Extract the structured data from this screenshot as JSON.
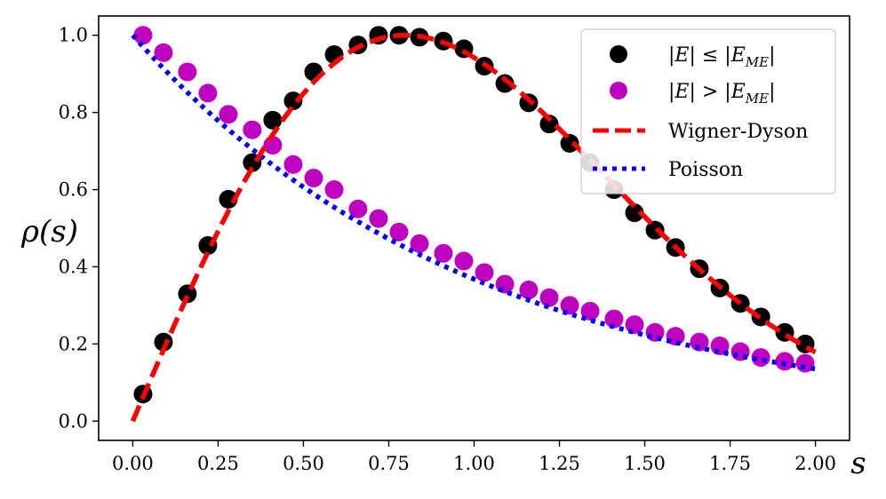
{
  "chart_data": {
    "type": "scatter+line",
    "title": "",
    "xlabel": "s",
    "ylabel": "ρ(s)",
    "xlim": [
      -0.1,
      2.1
    ],
    "ylim": [
      -0.05,
      1.05
    ],
    "xticks": [
      "0.00",
      "0.25",
      "0.50",
      "0.75",
      "1.00",
      "1.25",
      "1.50",
      "1.75",
      "2.00"
    ],
    "yticks": [
      "0.0",
      "0.2",
      "0.4",
      "0.6",
      "0.8",
      "1.0"
    ],
    "grid": false,
    "legend_position": "top-right",
    "x": [
      0.03,
      0.09,
      0.16,
      0.22,
      0.28,
      0.35,
      0.41,
      0.47,
      0.53,
      0.59,
      0.66,
      0.72,
      0.78,
      0.84,
      0.91,
      0.97,
      1.03,
      1.09,
      1.16,
      1.22,
      1.28,
      1.34,
      1.41,
      1.47,
      1.53,
      1.59,
      1.66,
      1.72,
      1.78,
      1.84,
      1.91,
      1.97
    ],
    "series": [
      {
        "name": "|E| ≤ |E_ME|",
        "kind": "scatter",
        "color": "#000000",
        "values": [
          0.07,
          0.205,
          0.33,
          0.455,
          0.575,
          0.67,
          0.78,
          0.83,
          0.905,
          0.95,
          0.975,
          1.0,
          1.0,
          0.995,
          0.985,
          0.965,
          0.92,
          0.875,
          0.825,
          0.77,
          0.72,
          0.67,
          0.6,
          0.54,
          0.495,
          0.45,
          0.395,
          0.345,
          0.305,
          0.27,
          0.23,
          0.2
        ]
      },
      {
        "name": "|E| > |E_ME|",
        "kind": "scatter",
        "color": "#c000c0",
        "values": [
          1.0,
          0.955,
          0.905,
          0.85,
          0.795,
          0.755,
          0.715,
          0.665,
          0.63,
          0.6,
          0.55,
          0.525,
          0.49,
          0.46,
          0.435,
          0.415,
          0.385,
          0.355,
          0.34,
          0.32,
          0.3,
          0.285,
          0.265,
          0.25,
          0.23,
          0.22,
          0.205,
          0.195,
          0.18,
          0.165,
          0.155,
          0.15
        ]
      },
      {
        "name": "Wigner-Dyson",
        "kind": "line",
        "style": "dashed",
        "color": "#ff0000",
        "formula": "(pi/2)*s*exp(-pi*s^2/4), normalized to peak 1",
        "x_range": [
          0,
          2
        ]
      },
      {
        "name": "Poisson",
        "kind": "line",
        "style": "dotted",
        "color": "#0000ff",
        "formula": "exp(-s)",
        "x_range": [
          0,
          2
        ]
      }
    ],
    "legend": [
      {
        "math": "|E| ≤ |E",
        "sub": "ME",
        "tail": "|"
      },
      {
        "math": "|E| > |E",
        "sub": "ME",
        "tail": "|"
      },
      {
        "label": "Wigner-Dyson"
      },
      {
        "label": "Poisson"
      }
    ]
  }
}
